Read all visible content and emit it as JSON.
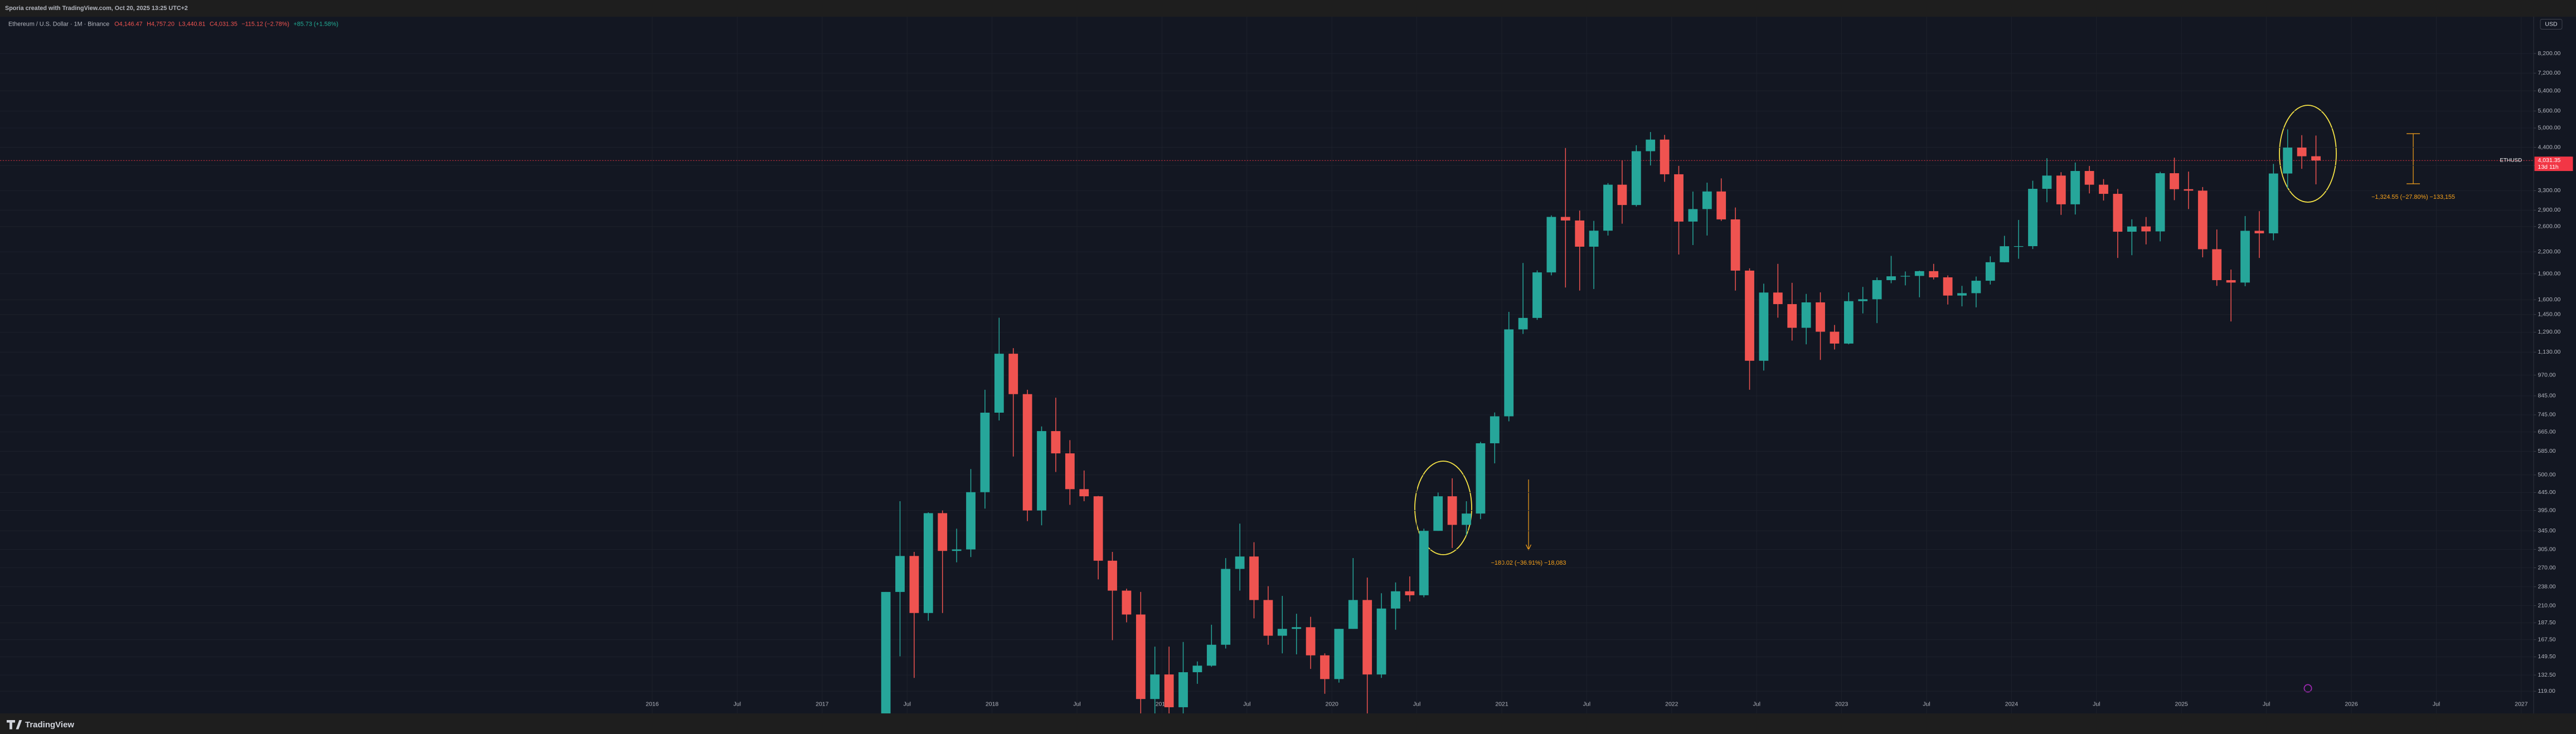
{
  "chart_data": {
    "type": "candlestick",
    "watermark": "Sporia created with TradingView.com, Oct 20, 2025 13:25 UTC+2",
    "title": "Ethereum / U.S. Dollar · 1M · Binance",
    "header": {
      "open": "O4,146.47",
      "high": "H4,757.20",
      "low": "L3,440.81",
      "close": "C4,031.35",
      "change": "−115.12 (−2.78%)",
      "extra": "+85.73 (+1.58%)"
    },
    "currency": "USD",
    "brand": "TradingView",
    "last_price": {
      "value": 4031.35,
      "label": "4,031.35",
      "countdown": "13d 11h",
      "symbol": "ETHUSD",
      "color": "#f23645"
    },
    "annotations": [
      "−180.02 (−36.91%) −18,083",
      "−1,324.55 (−27.80%) −133,155"
    ],
    "up_color": "#26a69a",
    "down_color": "#ef5350",
    "log_scale": true,
    "grid": true,
    "x": [
      "2017-05",
      "2017-06",
      "2017-07",
      "2017-08",
      "2017-09",
      "2017-10",
      "2017-11",
      "2017-12",
      "2018-01",
      "2018-02",
      "2018-03",
      "2018-04",
      "2018-05",
      "2018-06",
      "2018-07",
      "2018-08",
      "2018-09",
      "2018-10",
      "2018-11",
      "2018-12",
      "2019-01",
      "2019-02",
      "2019-03",
      "2019-04",
      "2019-05",
      "2019-06",
      "2019-07",
      "2019-08",
      "2019-09",
      "2019-10",
      "2019-11",
      "2019-12",
      "2020-01",
      "2020-02",
      "2020-03",
      "2020-04",
      "2020-05",
      "2020-06",
      "2020-07",
      "2020-08",
      "2020-09",
      "2020-10",
      "2020-11",
      "2020-12",
      "2021-01",
      "2021-02",
      "2021-03",
      "2021-04",
      "2021-05",
      "2021-06",
      "2021-07",
      "2021-08",
      "2021-09",
      "2021-10",
      "2021-11",
      "2021-12",
      "2022-01",
      "2022-02",
      "2022-03",
      "2022-04",
      "2022-05",
      "2022-06",
      "2022-07",
      "2022-08",
      "2022-09",
      "2022-10",
      "2022-11",
      "2022-12",
      "2023-01",
      "2023-02",
      "2023-03",
      "2023-04",
      "2023-05",
      "2023-06",
      "2023-07",
      "2023-08",
      "2023-09",
      "2023-10",
      "2023-11",
      "2023-12",
      "2024-01",
      "2024-02",
      "2024-03",
      "2024-04",
      "2024-05",
      "2024-06",
      "2024-07",
      "2024-08",
      "2024-09",
      "2024-10",
      "2024-11",
      "2024-12",
      "2025-01",
      "2025-02",
      "2025-03",
      "2025-04",
      "2025-05",
      "2025-06",
      "2025-07",
      "2025-08",
      "2025-09",
      "2025-10"
    ],
    "open": [
      80,
      230,
      292,
      200,
      388,
      302,
      305,
      446,
      756,
      1118,
      855,
      395,
      669,
      577,
      455,
      434,
      283,
      232,
      198,
      113,
      133,
      107,
      135,
      141,
      162,
      268,
      291,
      218,
      172,
      180,
      182,
      151,
      129,
      180,
      218,
      133,
      206,
      231,
      225,
      345,
      434,
      359,
      387,
      617,
      738,
      1314,
      1418,
      1918,
      2772,
      2707,
      2275,
      2530,
      3433,
      3000,
      4288,
      4631,
      3679,
      2688,
      2920,
      3282,
      2727,
      1941,
      1067,
      1678,
      1554,
      1328,
      1572,
      1294,
      1196,
      1585,
      1605,
      1822,
      1869,
      1874,
      1934,
      1856,
      1645,
      1671,
      1815,
      2052,
      2282,
      2283,
      3340,
      3647,
      3014,
      3760,
      3433,
      3231,
      2513,
      2602,
      2518,
      3705,
      3332,
      3300,
      2237,
      1822,
      1793,
      2528,
      2486,
      3698,
      4392,
      4146.47
    ],
    "high": [
      230,
      420,
      300,
      390,
      395,
      350,
      520,
      880,
      1420,
      1160,
      880,
      690,
      835,
      630,
      515,
      435,
      300,
      235,
      230,
      160,
      160,
      165,
      145,
      185,
      288,
      362,
      320,
      239,
      224,
      199,
      195,
      153,
      180,
      288,
      253,
      228,
      245,
      255,
      350,
      445,
      489,
      420,
      623,
      757,
      1476,
      2042,
      1944,
      2800,
      4380,
      2891,
      2700,
      3470,
      4027,
      4460,
      4870,
      4778,
      3890,
      3280,
      3480,
      3580,
      2950,
      1970,
      1780,
      2030,
      1790,
      1663,
      1680,
      1353,
      1680,
      1742,
      1855,
      2140,
      1930,
      1940,
      2030,
      1880,
      1754,
      1866,
      2134,
      2445,
      2717,
      3525,
      4093,
      3730,
      3977,
      3887,
      3562,
      3337,
      2728,
      2770,
      3740,
      4107,
      3745,
      3380,
      2550,
      1955,
      2788,
      2880,
      3941,
      4956,
      4769,
      4757.2
    ],
    "low": [
      80,
      150,
      130,
      190,
      200,
      280,
      290,
      400,
      718,
      565,
      368,
      358,
      510,
      410,
      420,
      250,
      167,
      188,
      101,
      81,
      100,
      102,
      125,
      140,
      158,
      232,
      193,
      162,
      153,
      152,
      138,
      117,
      126,
      180,
      86,
      130,
      179,
      216,
      222,
      345,
      308,
      335,
      373,
      540,
      714,
      1275,
      1400,
      1881,
      1735,
      1700,
      1718,
      2450,
      2650,
      2970,
      3900,
      3500,
      2160,
      2300,
      2450,
      2700,
      1700,
      880,
      1000,
      1420,
      1220,
      1190,
      1073,
      1150,
      1190,
      1461,
      1370,
      1785,
      1760,
      1626,
      1830,
      1550,
      1531,
      1521,
      1770,
      2050,
      2100,
      2240,
      3055,
      2810,
      2817,
      3240,
      3090,
      2111,
      2150,
      2310,
      2357,
      3098,
      2920,
      2120,
      1754,
      1385,
      1750,
      2111,
      2373,
      3355,
      3815,
      3440.81
    ],
    "close": [
      230,
      292,
      200,
      388,
      302,
      305,
      446,
      756,
      1118,
      855,
      395,
      669,
      577,
      455,
      434,
      283,
      232,
      198,
      113,
      133,
      107,
      135,
      141,
      162,
      268,
      291,
      218,
      172,
      180,
      182,
      151,
      129,
      180,
      218,
      133,
      206,
      231,
      225,
      345,
      434,
      359,
      387,
      617,
      738,
      1314,
      1418,
      1918,
      2772,
      2707,
      2275,
      2530,
      3433,
      3000,
      4288,
      4631,
      3679,
      2688,
      2920,
      3282,
      2727,
      1941,
      1067,
      1678,
      1554,
      1328,
      1572,
      1294,
      1196,
      1585,
      1605,
      1822,
      1869,
      1874,
      1934,
      1856,
      1645,
      1671,
      1815,
      2052,
      2282,
      2283,
      3340,
      3647,
      3014,
      3760,
      3433,
      3231,
      2513,
      2602,
      2518,
      3705,
      3332,
      3300,
      2237,
      1822,
      1793,
      2528,
      2486,
      3698,
      4392,
      4146.47,
      4031.35
    ],
    "ylim": [
      111,
      10240
    ],
    "yticks": [
      {
        "value": 8200,
        "label": "8,200.00"
      },
      {
        "value": 7200,
        "label": "7,200.00"
      },
      {
        "value": 6400,
        "label": "6,400.00"
      },
      {
        "value": 5600,
        "label": "5,600.00"
      },
      {
        "value": 5000,
        "label": "5,000.00"
      },
      {
        "value": 4400,
        "label": "4,400.00"
      },
      {
        "value": 3900,
        "label": "3,900.00"
      },
      {
        "value": 3300,
        "label": "3,300.00"
      },
      {
        "value": 2900,
        "label": "2,900.00"
      },
      {
        "value": 2600,
        "label": "2,600.00"
      },
      {
        "value": 2200,
        "label": "2,200.00"
      },
      {
        "value": 1900,
        "label": "1,900.00"
      },
      {
        "value": 1600,
        "label": "1,600.00"
      },
      {
        "value": 1450,
        "label": "1,450.00"
      },
      {
        "value": 1290,
        "label": "1,290.00"
      },
      {
        "value": 1130,
        "label": "1,130.00"
      },
      {
        "value": 970,
        "label": "970.00"
      },
      {
        "value": 845,
        "label": "845.00"
      },
      {
        "value": 745,
        "label": "745.00"
      },
      {
        "value": 665,
        "label": "665.00"
      },
      {
        "value": 585,
        "label": "585.00"
      },
      {
        "value": 500,
        "label": "500.00"
      },
      {
        "value": 445,
        "label": "445.00"
      },
      {
        "value": 395,
        "label": "395.00"
      },
      {
        "value": 345,
        "label": "345.00"
      },
      {
        "value": 305,
        "label": "305.00"
      },
      {
        "value": 270,
        "label": "270.00"
      },
      {
        "value": 238,
        "label": "238.00"
      },
      {
        "value": 210,
        "label": "210.00"
      },
      {
        "value": 187.5,
        "label": "187.50"
      },
      {
        "value": 167.5,
        "label": "167.50"
      },
      {
        "value": 149.5,
        "label": "149.50"
      },
      {
        "value": 132.5,
        "label": "132.50"
      },
      {
        "value": 119,
        "label": "119.00"
      }
    ],
    "xticks": [
      {
        "value": "2016-01",
        "label": "2016"
      },
      {
        "value": "2016-07",
        "label": "Jul"
      },
      {
        "value": "2017-01",
        "label": "2017"
      },
      {
        "value": "2017-07",
        "label": "Jul"
      },
      {
        "value": "2018-01",
        "label": "2018"
      },
      {
        "value": "2018-07",
        "label": "Jul"
      },
      {
        "value": "2019-01",
        "label": "2019"
      },
      {
        "value": "2019-07",
        "label": "Jul"
      },
      {
        "value": "2020-01",
        "label": "2020"
      },
      {
        "value": "2020-07",
        "label": "Jul"
      },
      {
        "value": "2021-01",
        "label": "2021"
      },
      {
        "value": "2021-07",
        "label": "Jul"
      },
      {
        "value": "2022-01",
        "label": "2022"
      },
      {
        "value": "2022-07",
        "label": "Jul"
      },
      {
        "value": "2023-01",
        "label": "2023"
      },
      {
        "value": "2023-07",
        "label": "Jul"
      },
      {
        "value": "2024-01",
        "label": "2024"
      },
      {
        "value": "2024-07",
        "label": "Jul"
      },
      {
        "value": "2025-01",
        "label": "2025"
      },
      {
        "value": "2025-07",
        "label": "Jul"
      },
      {
        "value": "2026-01",
        "label": "2026"
      },
      {
        "value": "2026-07",
        "label": "Jul"
      },
      {
        "value": "2027-01",
        "label": "2027"
      }
    ]
  }
}
